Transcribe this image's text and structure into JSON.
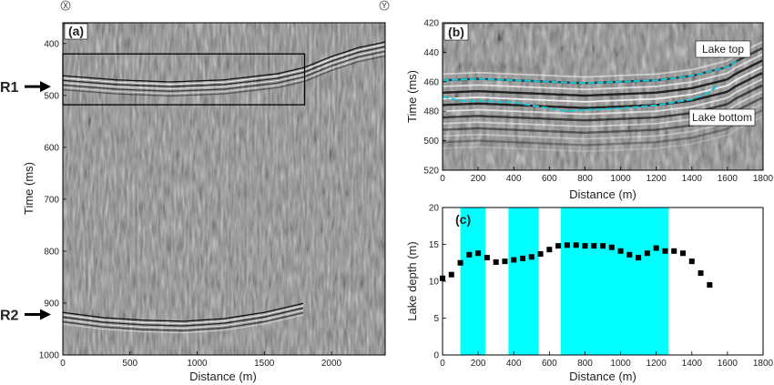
{
  "corner_markers": {
    "left": "X",
    "right": "Y"
  },
  "arrows": [
    {
      "label": "R1",
      "time": 483
    },
    {
      "label": "R2",
      "time": 922
    }
  ],
  "chart_data": [
    {
      "panel": "a",
      "type": "heatmap",
      "label": "(a)",
      "xlabel": "Distance (m)",
      "ylabel": "Time (ms)",
      "xlim": [
        0,
        2400
      ],
      "ylim": [
        1000,
        360
      ],
      "xticks": [
        0,
        500,
        1000,
        1500,
        2000
      ],
      "yticks": [
        400,
        500,
        600,
        700,
        800,
        900,
        1000
      ],
      "reflectors": [
        {
          "name": "lake surface",
          "x": [
            0,
            400,
            800,
            1200,
            1600,
            1800,
            2000,
            2200,
            2400
          ],
          "y": [
            462,
            470,
            474,
            470,
            458,
            446,
            425,
            408,
            397
          ]
        },
        {
          "name": "lake floor",
          "x": [
            0,
            300,
            600,
            900,
            1200,
            1500,
            1800
          ],
          "y": [
            918,
            928,
            933,
            935,
            930,
            918,
            900
          ]
        }
      ],
      "box": {
        "x": [
          0,
          1800
        ],
        "y": [
          420,
          518
        ]
      }
    },
    {
      "panel": "b",
      "type": "heatmap",
      "label": "(b)",
      "xlabel": "Distance (m)",
      "ylabel": "Time (ms)",
      "xlim": [
        0,
        1800
      ],
      "ylim": [
        520,
        420
      ],
      "xticks": [
        0,
        200,
        400,
        600,
        800,
        1000,
        1200,
        1400,
        1600,
        1800
      ],
      "yticks": [
        420,
        440,
        460,
        480,
        500,
        520
      ],
      "picks": [
        {
          "name": "Lake top",
          "x": [
            0,
            200,
            400,
            600,
            800,
            1000,
            1200,
            1400,
            1600,
            1650
          ],
          "y": [
            459,
            458,
            459,
            460,
            461,
            460,
            459,
            456,
            450,
            446
          ]
        },
        {
          "name": "Lake bottom",
          "x": [
            0,
            100,
            200,
            400,
            600,
            700,
            800,
            1000,
            1200,
            1400,
            1500,
            1550
          ],
          "y": [
            470,
            473,
            473,
            474,
            478,
            480,
            479,
            478,
            476,
            472,
            467,
            462
          ]
        }
      ],
      "annotations": [
        "Lake top",
        "Lake bottom"
      ]
    },
    {
      "panel": "c",
      "type": "scatter",
      "label": "(c)",
      "xlabel": "Distance (m)",
      "ylabel": "Lake depth (m)",
      "xlim": [
        0,
        1800
      ],
      "ylim": [
        0,
        20
      ],
      "xticks": [
        0,
        200,
        400,
        600,
        800,
        1000,
        1200,
        1400,
        1600,
        1800
      ],
      "yticks": [
        0,
        5,
        10,
        15,
        20
      ],
      "highlight_bands": [
        [
          100,
          240
        ],
        [
          370,
          540
        ],
        [
          665,
          1270
        ]
      ],
      "highlight_color": "#00ffff",
      "x": [
        0,
        50,
        100,
        150,
        200,
        250,
        300,
        350,
        400,
        450,
        500,
        550,
        600,
        650,
        700,
        750,
        800,
        850,
        900,
        950,
        1000,
        1050,
        1100,
        1150,
        1200,
        1250,
        1300,
        1350,
        1400,
        1450,
        1500
      ],
      "y": [
        10.4,
        10.9,
        12.5,
        13.6,
        13.8,
        13.2,
        12.6,
        12.7,
        12.9,
        13.1,
        13.3,
        13.7,
        14.3,
        14.8,
        14.9,
        14.9,
        14.8,
        14.8,
        14.8,
        14.6,
        14.1,
        13.6,
        13.2,
        13.8,
        14.5,
        14.1,
        14.1,
        13.8,
        12.7,
        11.1,
        9.5
      ]
    }
  ]
}
